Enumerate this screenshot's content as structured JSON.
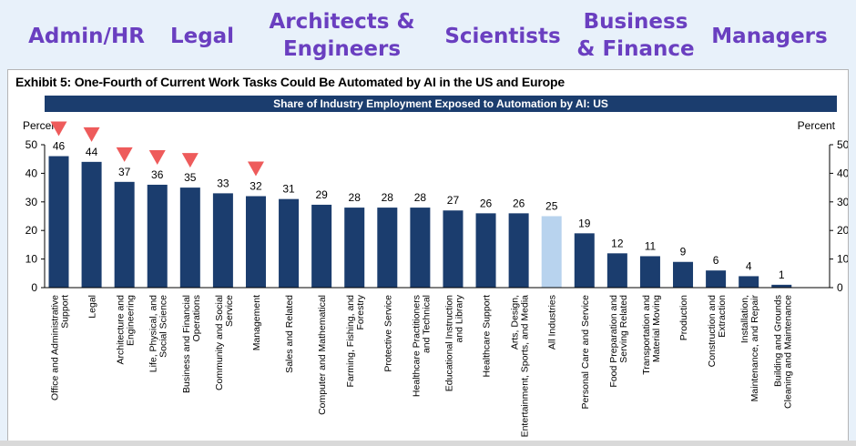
{
  "top_labels": [
    "Admin/HR",
    "Legal",
    "Architects &\nEngineers",
    "Scientists",
    "Business\n& Finance",
    "Managers"
  ],
  "exhibit_title": "Exhibit 5: One-Fourth of Current Work Tasks Could Be Automated by AI in the US and Europe",
  "colors": {
    "bar": "#1b3d6e",
    "highlight": "#b8d3ee",
    "marker": "#ee5b5b",
    "label_text": "#6a3fc0"
  },
  "chart_data": {
    "type": "bar",
    "title": "Share of Industry Employment Exposed to Automation by AI: US",
    "ylabel_left": "Percent",
    "ylabel_right": "Percent",
    "ylim": [
      0,
      50
    ],
    "yticks": [
      0,
      10,
      20,
      30,
      40,
      50
    ],
    "grid": false,
    "categories": [
      "Office and Administrative Support",
      "Legal",
      "Architecture and Engineering",
      "Life, Physical, and Social Science",
      "Business and Financial Operations",
      "Community and Social Service",
      "Management",
      "Sales and Related",
      "Computer and Mathematical",
      "Farming, Fishing, and Forestry",
      "Protective Service",
      "Healthcare Practitioners and Technical",
      "Educational Instruction and Library",
      "Healthcare Support",
      "Arts, Design, Entertainment, Sports, and Media",
      "All Industries",
      "Personal Care and Service",
      "Food Preparation and Serving Related",
      "Transportation and Material Moving",
      "Production",
      "Construction and Extraction",
      "Installation, Maintenance, and Repair",
      "Building and Grounds Cleaning and Maintenance"
    ],
    "values": [
      46,
      44,
      37,
      36,
      35,
      33,
      32,
      31,
      29,
      28,
      28,
      28,
      27,
      26,
      26,
      25,
      19,
      12,
      11,
      9,
      6,
      4,
      1
    ],
    "highlighted_category": "All Industries",
    "marked_categories": [
      "Office and Administrative Support",
      "Legal",
      "Architecture and Engineering",
      "Life, Physical, and Social Science",
      "Business and Financial Operations",
      "Management"
    ]
  }
}
